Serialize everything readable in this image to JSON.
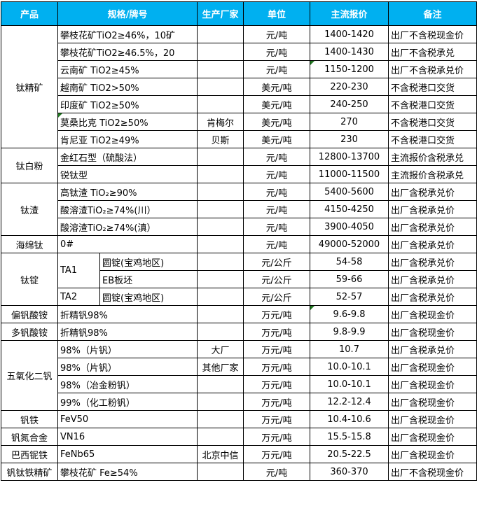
{
  "colors": {
    "header_bg": "#00B0F0",
    "header_fg": "#FFFFFF",
    "border": "#000000",
    "comment_marker_green": "#217821"
  },
  "icons": {
    "comment_marker": "green-corner-triangle"
  },
  "table": {
    "header": [
      "产品",
      "规格/牌号",
      "生产厂家",
      "单位",
      "主流报价",
      "备注"
    ],
    "groups": [
      {
        "product": "钛精矿",
        "rows": [
          {
            "spec": "攀枝花矿TiO2≥46%，10矿",
            "maker": "",
            "unit": "元/吨",
            "price": "1400-1420",
            "note": "出厂不含税现金价"
          },
          {
            "spec": "攀枝花矿TiO2≥46.5%，20",
            "maker": "",
            "unit": "元/吨",
            "price": "1400-1430",
            "note": "出厂不含税承兑"
          },
          {
            "spec": "云南矿 TiO2≥45%",
            "maker": "",
            "unit": "元/吨",
            "price": "1150-1200",
            "note": "出厂不含税承兑价",
            "price_marker": true
          },
          {
            "spec": "越南矿 TiO2>50%",
            "maker": "",
            "unit": "美元/吨",
            "price": "220-230",
            "note": "不含税港口交货"
          },
          {
            "spec": "印度矿 TiO2≥50%",
            "maker": "",
            "unit": "美元/吨",
            "price": "240-250",
            "note": "不含税港口交货"
          },
          {
            "spec": "莫桑比克 TiO2≥50%",
            "maker": "肯梅尔",
            "unit": "美元/吨",
            "price": "270",
            "note": "不含税港口交货",
            "spec_marker": true
          },
          {
            "spec": "肯尼亚 TiO2≥49%",
            "maker": "贝斯",
            "unit": "美元/吨",
            "price": "230",
            "note": "不含税港口交货"
          }
        ]
      },
      {
        "product": "钛白粉",
        "rows": [
          {
            "spec": "金红石型（硫酸法）",
            "maker": "",
            "unit": "元/吨",
            "price": "12800-13700",
            "note": "主流报价含税承兑"
          },
          {
            "spec": "锐钛型",
            "maker": "",
            "unit": "元/吨",
            "price": "11000-11500",
            "note": "主流报价含税承兑"
          }
        ]
      },
      {
        "product": "钛渣",
        "rows": [
          {
            "spec": "高钛渣 TiO₂≥90%",
            "maker": "",
            "unit": "元/吨",
            "price": "5400-5600",
            "note": "出厂含税承兑价"
          },
          {
            "spec": "酸溶渣TiO₂≥74%(川）",
            "maker": "",
            "unit": "元/吨",
            "price": "4150-4250",
            "note": "出厂含税承兑价"
          },
          {
            "spec": "酸溶渣TiO₂≥74%(滇）",
            "maker": "",
            "unit": "元/吨",
            "price": "3900-4050",
            "note": "出厂含税承兑价"
          }
        ]
      },
      {
        "product": "海绵钛",
        "rows": [
          {
            "spec": "0#",
            "maker": "",
            "unit": "元/吨",
            "price": "49000-52000",
            "note": "出厂含税承兑价"
          }
        ]
      },
      {
        "product": "钛锭",
        "split": true,
        "rows": [
          {
            "grade": "TA1",
            "grade_span": 2,
            "spec": "圆锭(宝鸡地区)",
            "maker": "",
            "unit": "元/公斤",
            "price": "54-58",
            "note": "出厂含税承兑价"
          },
          {
            "spec": "EB板坯",
            "maker": "",
            "unit": "元/公斤",
            "price": "59-66",
            "note": "出厂含税承兑价"
          },
          {
            "grade": "TA2",
            "grade_span": 1,
            "spec": "圆锭(宝鸡地区)",
            "maker": "",
            "unit": "元/公斤",
            "price": "52-57",
            "note": "出厂含税承兑价"
          }
        ]
      },
      {
        "product": "偏钒酸铵",
        "rows": [
          {
            "spec": "折精钒98%",
            "maker": "",
            "unit": "万元/吨",
            "price": "9.6-9.8",
            "note": "出厂含税现金价",
            "price_marker": true
          }
        ]
      },
      {
        "product": "多钒酸铵",
        "rows": [
          {
            "spec": "折精钒98%",
            "maker": "",
            "unit": "万元/吨",
            "price": "9.8-9.9",
            "note": "出厂含税现金价"
          }
        ]
      },
      {
        "product": "五氧化二钒",
        "rows": [
          {
            "spec": "98%（片钒）",
            "maker": "大厂",
            "unit": "万元/吨",
            "price": "10.7",
            "note": "出厂含税承兑价"
          },
          {
            "spec": "98%（片钒）",
            "maker": "其他厂家",
            "unit": "万元/吨",
            "price": "10.0-10.1",
            "note": "出厂含税现金价"
          },
          {
            "spec": "98%（冶金粉钒）",
            "maker": "",
            "unit": "万元/吨",
            "price": "10.0-10.1",
            "note": "出厂含税现金价"
          },
          {
            "spec": "99%（化工粉钒）",
            "maker": "",
            "unit": "万元/吨",
            "price": "12.2-12.4",
            "note": "出厂含税现金价"
          }
        ]
      },
      {
        "product": "钒铁",
        "rows": [
          {
            "spec": "FeV50",
            "maker": "",
            "unit": "万元/吨",
            "price": "10.4-10.6",
            "note": "出厂含税现金价"
          }
        ]
      },
      {
        "product": "钒氮合金",
        "rows": [
          {
            "spec": "VN16",
            "maker": "",
            "unit": "万元/吨",
            "price": "15.5-15.8",
            "note": "出厂含税现金价"
          }
        ]
      },
      {
        "product": "巴西铌铁",
        "rows": [
          {
            "spec": "FeNb65",
            "maker": "北京中信",
            "unit": "万元/吨",
            "price": "20.5-22.5",
            "note": "出厂含税现金价"
          }
        ]
      },
      {
        "product": "钒钛铁精矿",
        "rows": [
          {
            "spec": "攀枝花矿 Fe≥54%",
            "maker": "",
            "unit": "元/吨",
            "price": "360-370",
            "note": "出厂不含税现金价"
          }
        ]
      }
    ]
  }
}
